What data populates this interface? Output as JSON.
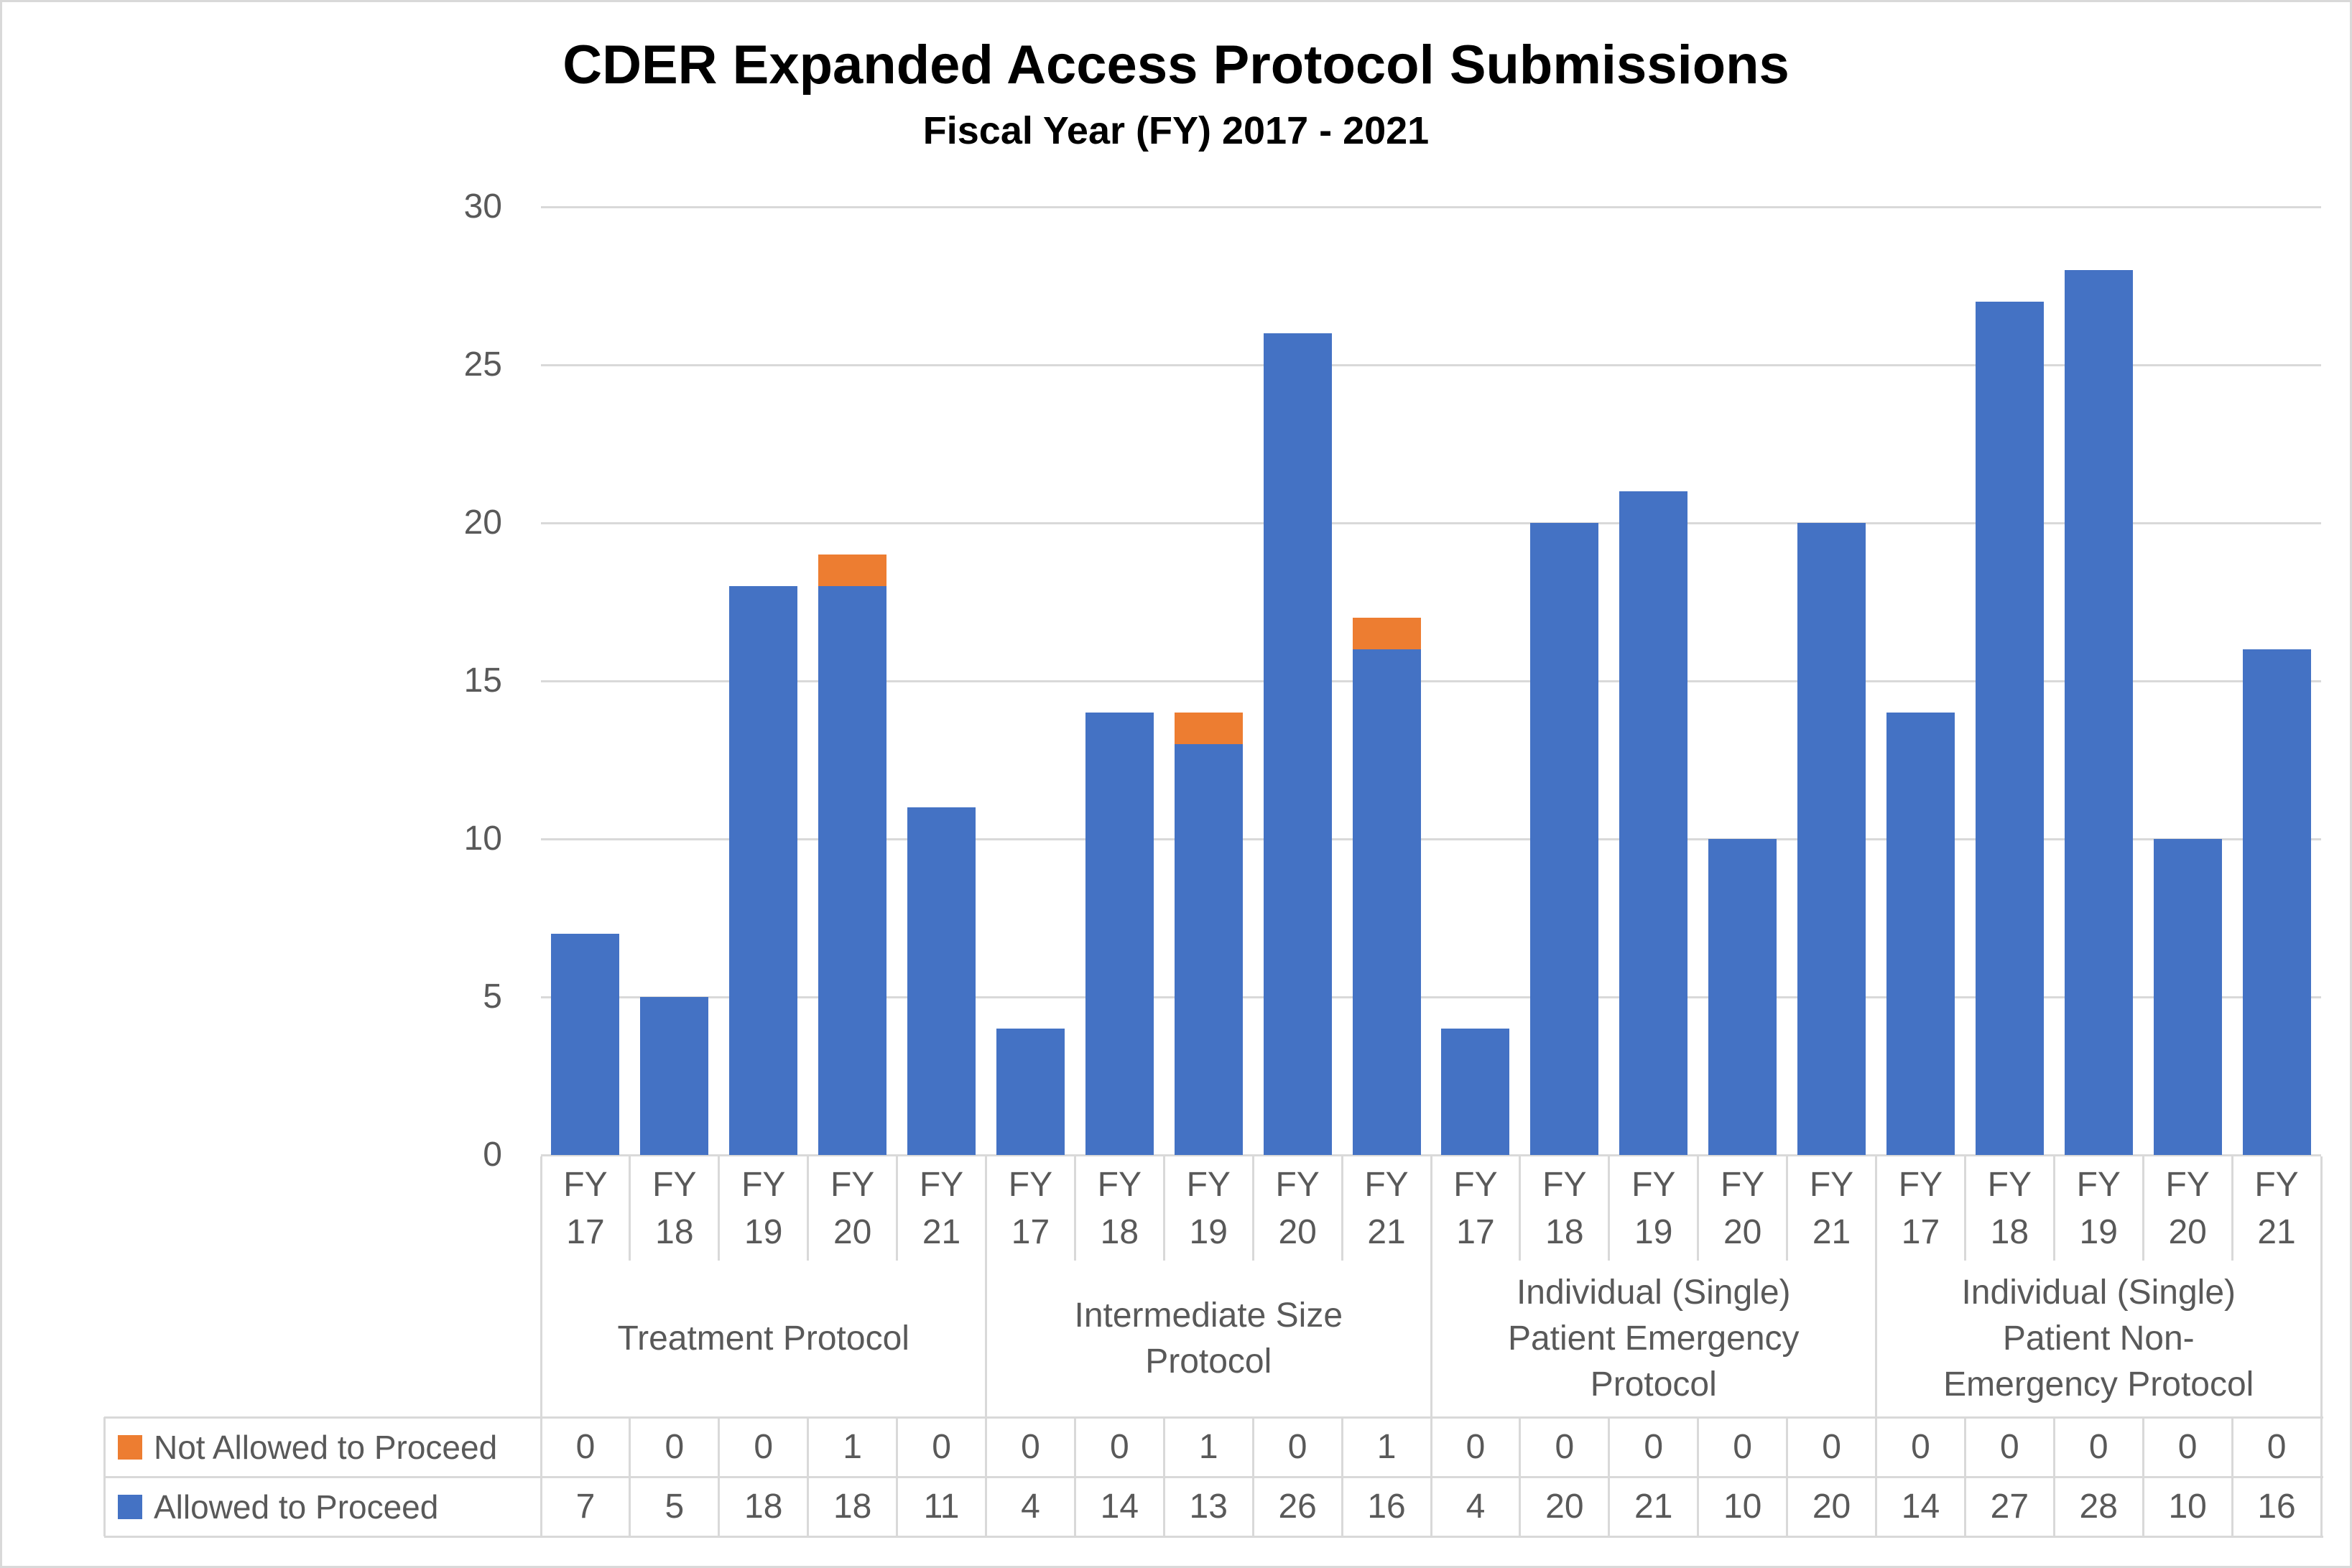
{
  "title": "CDER Expanded Access Protocol Submissions",
  "subtitle": "Fiscal Year (FY) 2017 - 2021",
  "palette": {
    "allowed_blue": "#4472C4",
    "not_allowed_orange": "#ED7D31",
    "gridline_gray": "#D9D9D9",
    "axis_text_gray": "#595959",
    "title_black": "#000000"
  },
  "chart_data": {
    "type": "bar",
    "stacked": true,
    "title": "CDER Expanded Access Protocol Submissions",
    "subtitle": "Fiscal Year (FY) 2017 - 2021",
    "grid": true,
    "legend_position": "table-left",
    "ylim": [
      0,
      30
    ],
    "yticks": [
      0,
      5,
      10,
      15,
      20,
      25,
      30
    ],
    "fy_label_prefix": "FY",
    "years": [
      "17",
      "18",
      "19",
      "20",
      "21"
    ],
    "groups": [
      "Treatment Protocol",
      "Intermediate Size\nProtocol",
      "Individual (Single)\nPatient Emergency\nProtocol",
      "Individual (Single)\nPatient Non-\nEmergency Protocol"
    ],
    "series": [
      {
        "name": "Not Allowed to Proceed",
        "color": "#ED7D31",
        "values": [
          [
            0,
            0,
            0,
            1,
            0
          ],
          [
            0,
            0,
            1,
            0,
            1
          ],
          [
            0,
            0,
            0,
            0,
            0
          ],
          [
            0,
            0,
            0,
            0,
            0
          ]
        ]
      },
      {
        "name": "Allowed to Proceed",
        "color": "#4472C4",
        "values": [
          [
            7,
            5,
            18,
            18,
            11
          ],
          [
            4,
            14,
            13,
            26,
            16
          ],
          [
            4,
            20,
            21,
            10,
            20
          ],
          [
            14,
            27,
            28,
            10,
            16
          ]
        ]
      }
    ]
  }
}
